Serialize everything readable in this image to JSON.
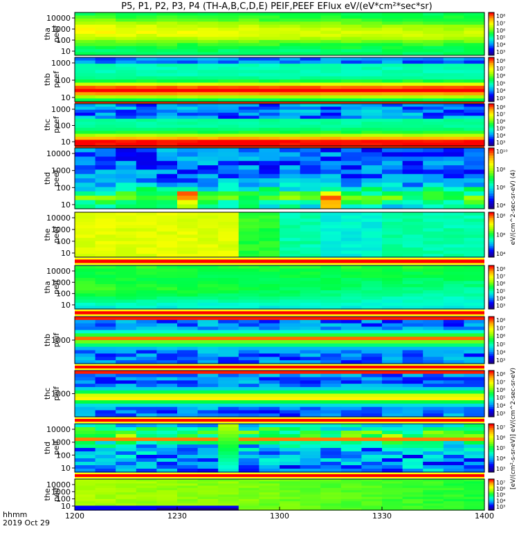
{
  "chart_data": {
    "type": "heatmap",
    "title": "P5, P1, P2, P3, P4 (TH-A,B,C,D,E) PEIF,PEEF EFlux eV/(eV*cm²*sec*sr)",
    "colorbar_label": "[eV/(cm²-s-sr-eV)] eV/(cm^2-sec-sr-eV) (4)",
    "colorbar_label_upper": "eV/(cm^2-sec-sr-eV) (4)",
    "colorbar_label_lower": "[eV/(cm²-s-sr-eV)] eV/(cm^2-sec-sr-eV)",
    "x_axis": {
      "ticks": [
        "1200",
        "1230",
        "1300",
        "1330",
        "1400"
      ],
      "range": [
        "12:00",
        "14:00"
      ],
      "label_line1": "hhmm",
      "label_line2": "2019 Oct 29"
    },
    "panels": [
      {
        "name": "thaPeef",
        "ylabel": [
          "tha",
          "peef"
        ],
        "yticks": [
          "10000",
          "1000",
          "100",
          "10"
        ],
        "scale": "log",
        "colorbar_ticks": [
          "10⁸",
          "10⁷",
          "10⁶",
          "10⁵",
          "10⁴",
          "10³"
        ]
      },
      {
        "name": "thbPeef",
        "ylabel": [
          "thb",
          "peef"
        ],
        "yticks": [
          "1000",
          "100",
          "10"
        ],
        "scale": "log",
        "colorbar_ticks": [
          "10⁸",
          "10⁷",
          "10⁶",
          "10⁵",
          "10⁴",
          "10³"
        ]
      },
      {
        "name": "thcPeef",
        "ylabel": [
          "thc",
          "peef"
        ],
        "yticks": [
          "1000",
          "100",
          "10"
        ],
        "scale": "log",
        "colorbar_ticks": [
          "10⁸",
          "10⁷",
          "10⁶",
          "10⁵",
          "10⁴",
          "10³"
        ]
      },
      {
        "name": "thdPeef",
        "ylabel": [
          "thd",
          "peef"
        ],
        "yticks": [
          "10000",
          "1000",
          "100",
          "10"
        ],
        "scale": "log",
        "colorbar_ticks": [
          "10¹⁰",
          "10⁸",
          "10⁶",
          "10⁴"
        ]
      },
      {
        "name": "thePeef",
        "ylabel": [
          "the",
          "peef"
        ],
        "yticks": [
          "10000",
          "1000",
          "100",
          "10"
        ],
        "scale": "log",
        "colorbar_ticks": [
          "10⁸",
          "10⁶",
          "10⁴"
        ]
      },
      {
        "name": "thaPeif",
        "ylabel": [
          "tha",
          "peif"
        ],
        "yticks": [
          "10000",
          "1000",
          "100",
          "10"
        ],
        "scale": "log",
        "colorbar_ticks": [
          "10⁸",
          "10⁷",
          "10⁶",
          "10⁵",
          "10⁴",
          "10³"
        ]
      },
      {
        "name": "thbPeif",
        "ylabel": [
          "thb",
          "peif"
        ],
        "yticks": [
          "1000"
        ],
        "scale": "log",
        "colorbar_ticks": [
          "10⁸",
          "10⁷",
          "10⁶",
          "10⁵",
          "10⁴",
          "10³"
        ]
      },
      {
        "name": "thcPeif",
        "ylabel": [
          "thc",
          "peif"
        ],
        "yticks": [
          "1000"
        ],
        "scale": "log",
        "colorbar_ticks": [
          "10⁸",
          "10⁷",
          "10⁶",
          "10⁵",
          "10⁴",
          "10³"
        ]
      },
      {
        "name": "thdPeif",
        "ylabel": [
          "thd",
          "peif"
        ],
        "yticks": [
          "10000",
          "1000",
          "100",
          "10"
        ],
        "scale": "log",
        "colorbar_ticks": [
          "10⁷",
          "10⁶",
          "10⁵",
          "10⁴",
          "10³"
        ]
      },
      {
        "name": "thePeif",
        "ylabel": [
          "the",
          "peif"
        ],
        "yticks": [
          "10000",
          "1000",
          "100",
          "10"
        ],
        "scale": "log",
        "colorbar_ticks": [
          "10⁷",
          "10⁶",
          "10⁵",
          "10⁴",
          "10³"
        ]
      }
    ],
    "colormap": [
      "#1a0090",
      "#0000ff",
      "#00a0ff",
      "#00ffd0",
      "#00ff40",
      "#a0ff00",
      "#ffff00",
      "#ffa000",
      "#ff0000"
    ]
  }
}
